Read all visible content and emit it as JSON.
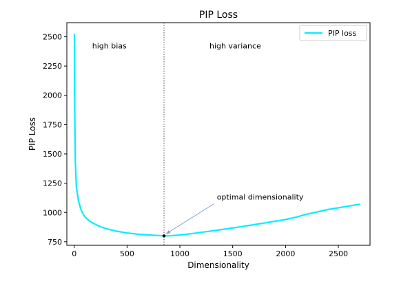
{
  "chart_data": {
    "type": "line",
    "title": "PIP Loss",
    "xlabel": "Dimensionality",
    "ylabel": "PIP Loss",
    "xlim": [
      -70,
      2800
    ],
    "ylim": [
      720,
      2620
    ],
    "xticks": [
      0,
      500,
      1000,
      1500,
      2000,
      2500
    ],
    "yticks": [
      750,
      1000,
      1250,
      1500,
      1750,
      2000,
      2250,
      2500
    ],
    "xtick_labels": [
      "0",
      "500",
      "1000",
      "1500",
      "2000",
      "2500"
    ],
    "ytick_labels": [
      "750",
      "1000",
      "1250",
      "1500",
      "1750",
      "2000",
      "2250",
      "2500"
    ],
    "grid": false,
    "legend_position": "top-right",
    "series": [
      {
        "name": "PIP loss",
        "color": "#00eeff",
        "x": [
          2,
          5,
          10,
          20,
          40,
          60,
          80,
          100,
          150,
          200,
          250,
          300,
          400,
          500,
          600,
          700,
          800,
          850,
          900,
          1000,
          1100,
          1200,
          1300,
          1400,
          1500,
          1600,
          1700,
          1800,
          1900,
          2000,
          2100,
          2200,
          2300,
          2400,
          2500,
          2600,
          2700
        ],
        "y": [
          2520,
          1860,
          1440,
          1220,
          1100,
          1035,
          992,
          963,
          923,
          898,
          878,
          862,
          840,
          825,
          815,
          808,
          803,
          800,
          801,
          808,
          818,
          830,
          842,
          855,
          868,
          882,
          896,
          910,
          925,
          940,
          960,
          985,
          1005,
          1025,
          1040,
          1055,
          1070
        ]
      }
    ],
    "vline": {
      "x": 850,
      "style": "dotted"
    },
    "point": {
      "x": 850,
      "y": 800
    },
    "annotations": [
      {
        "text": "high bias",
        "x": 170,
        "y": 2400
      },
      {
        "text": "high variance",
        "x": 1280,
        "y": 2400
      },
      {
        "text": "optimal dimensionality",
        "x": 1350,
        "y": 1110,
        "arrow_to": [
          850,
          800
        ]
      }
    ]
  }
}
